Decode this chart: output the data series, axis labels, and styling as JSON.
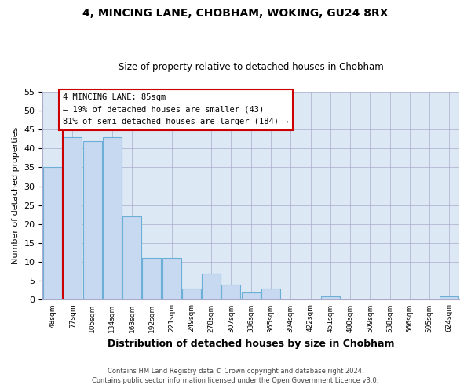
{
  "title": "4, MINCING LANE, CHOBHAM, WOKING, GU24 8RX",
  "subtitle": "Size of property relative to detached houses in Chobham",
  "xlabel": "Distribution of detached houses by size in Chobham",
  "ylabel": "Number of detached properties",
  "footer_line1": "Contains HM Land Registry data © Crown copyright and database right 2024.",
  "footer_line2": "Contains public sector information licensed under the Open Government Licence v3.0.",
  "bin_labels": [
    "48sqm",
    "77sqm",
    "105sqm",
    "134sqm",
    "163sqm",
    "192sqm",
    "221sqm",
    "249sqm",
    "278sqm",
    "307sqm",
    "336sqm",
    "365sqm",
    "394sqm",
    "422sqm",
    "451sqm",
    "480sqm",
    "509sqm",
    "538sqm",
    "566sqm",
    "595sqm",
    "624sqm"
  ],
  "bar_heights": [
    35,
    43,
    42,
    43,
    22,
    11,
    11,
    3,
    7,
    4,
    2,
    3,
    0,
    0,
    1,
    0,
    0,
    0,
    0,
    0,
    1
  ],
  "bar_color": "#c6d9f0",
  "bar_edge_color": "#6baed6",
  "plot_bg_color": "#dce9f5",
  "vline_color": "#cc0000",
  "annotation_title": "4 MINCING LANE: 85sqm",
  "annotation_line1": "← 19% of detached houses are smaller (43)",
  "annotation_line2": "81% of semi-detached houses are larger (184) →",
  "annotation_box_color": "#ffffff",
  "annotation_box_edge": "#cc0000",
  "ylim": [
    0,
    55
  ],
  "yticks": [
    0,
    5,
    10,
    15,
    20,
    25,
    30,
    35,
    40,
    45,
    50,
    55
  ],
  "background_color": "#ffffff",
  "grid_color": "#aaaacc"
}
